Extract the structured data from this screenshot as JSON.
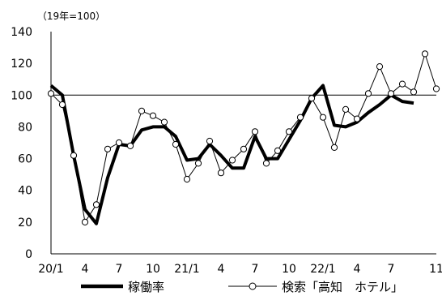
{
  "chart_data": {
    "type": "line",
    "unit_note": "（19年=100）",
    "x_tick_labels": [
      "20/1",
      "4",
      "7",
      "10",
      "21/1",
      "4",
      "7",
      "10",
      "22/1",
      "4",
      "7",
      "11"
    ],
    "y_ticks": [
      0,
      20,
      40,
      60,
      80,
      100,
      120,
      140
    ],
    "ylim": [
      0,
      140
    ],
    "reference_line": 100,
    "legend_position": "bottom",
    "series": [
      {
        "name": "稼働率",
        "style": "thick-line",
        "color": "#000000",
        "values": [
          106,
          100,
          62,
          28,
          19,
          48,
          69,
          68,
          78,
          80,
          80,
          74,
          59,
          60,
          69,
          62,
          54,
          54,
          74,
          60,
          60,
          72,
          84,
          98,
          106,
          81,
          80,
          83,
          89,
          94,
          100,
          96,
          95
        ]
      },
      {
        "name": "検索「高知　ホテル」",
        "style": "line-with-markers",
        "color": "#000000",
        "values": [
          101,
          94,
          62,
          20,
          31,
          66,
          70,
          68,
          90,
          87,
          83,
          69,
          47,
          57,
          71,
          51,
          59,
          66,
          77,
          57,
          65,
          77,
          86,
          98,
          86,
          67,
          91,
          85,
          101,
          118,
          101,
          107,
          102,
          126,
          104
        ]
      }
    ]
  }
}
